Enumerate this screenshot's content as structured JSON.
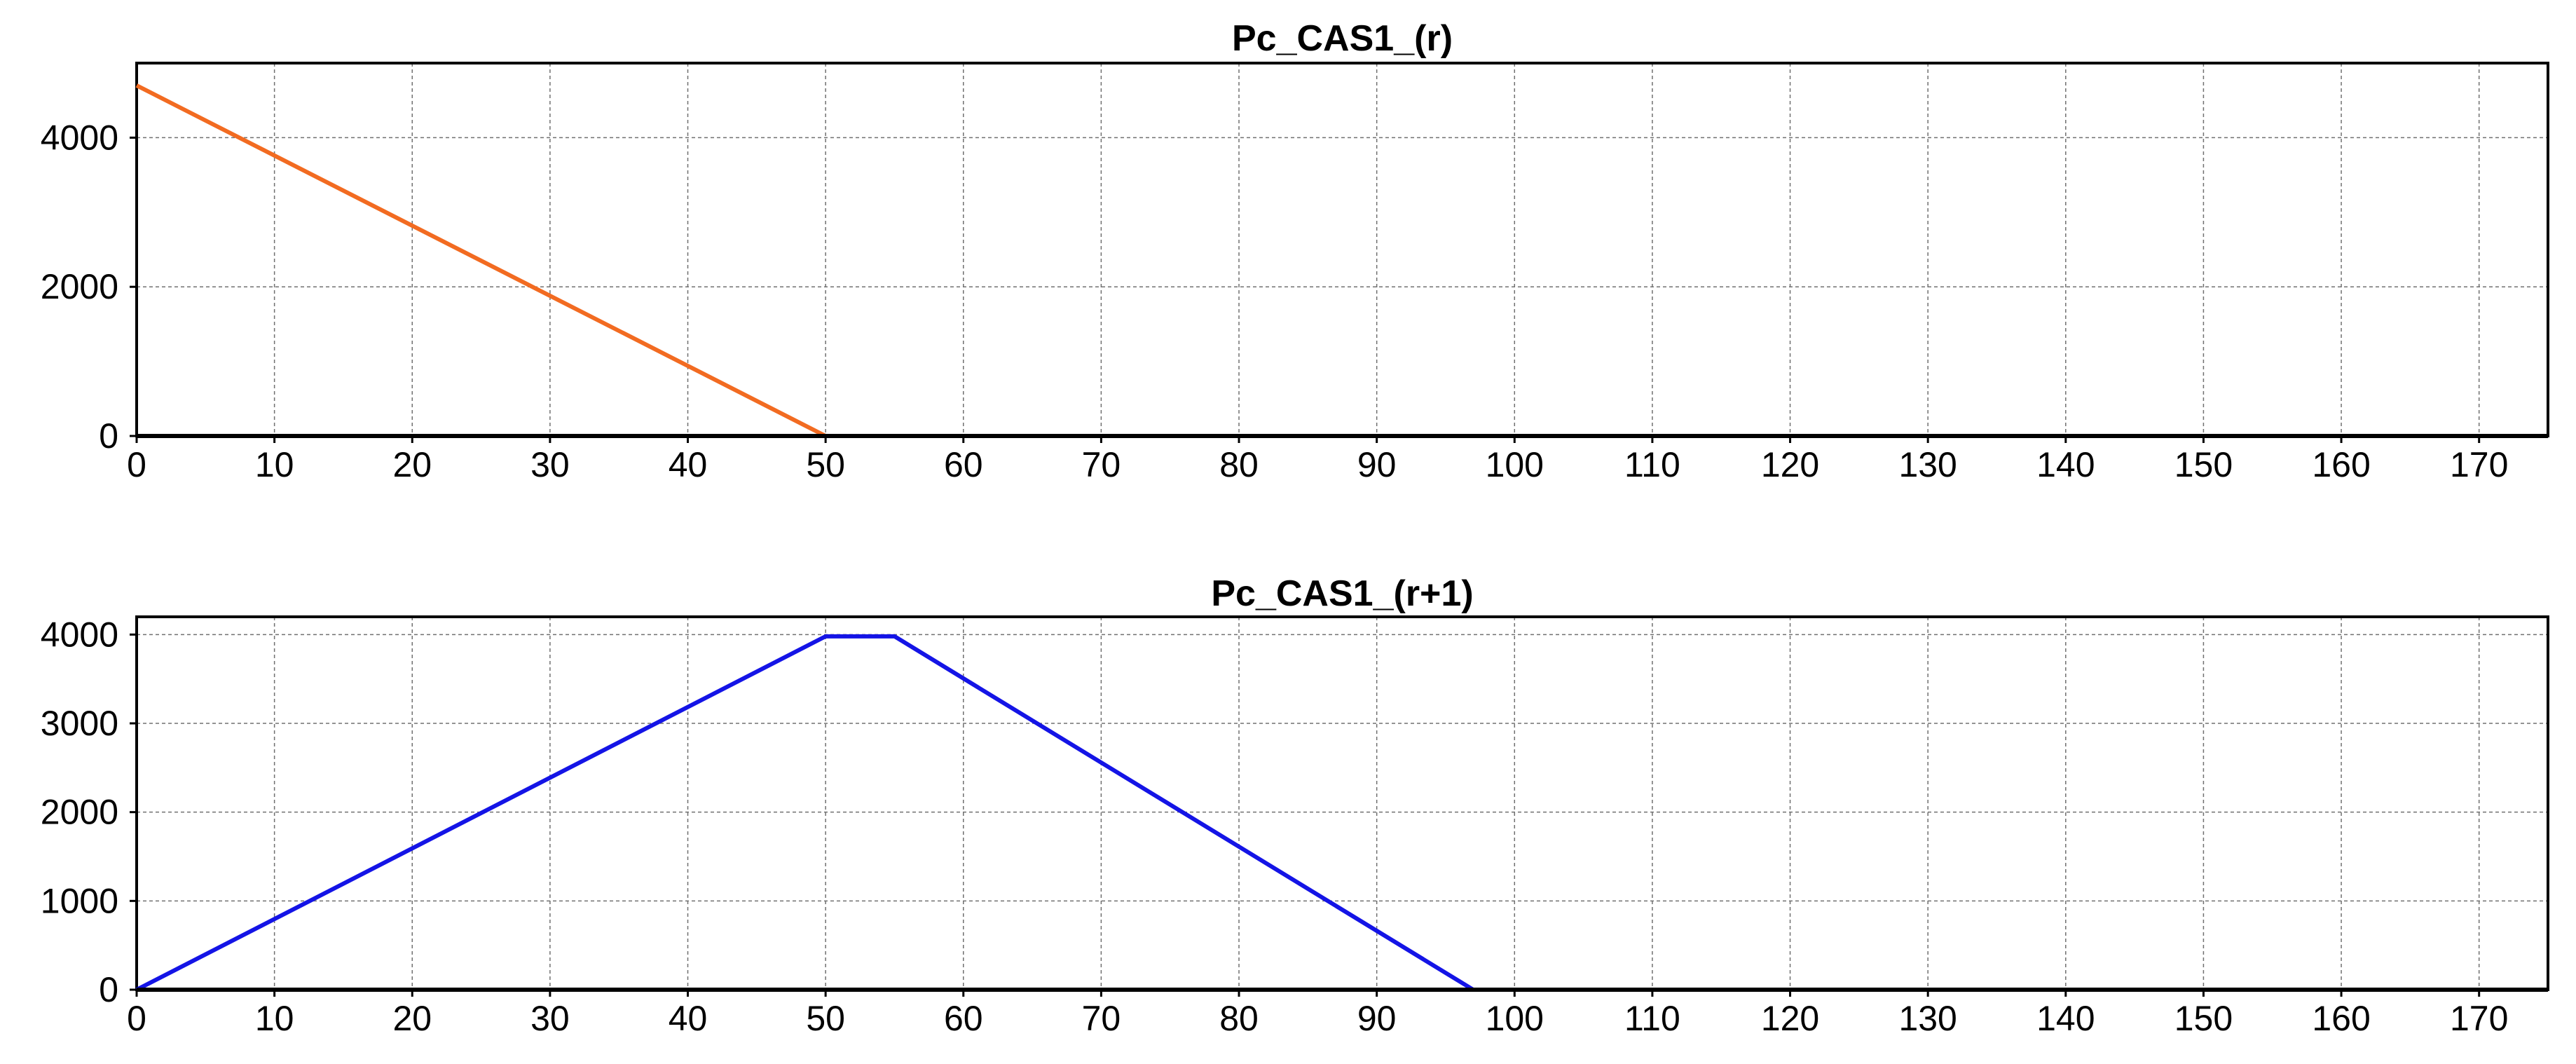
{
  "chart_data": [
    {
      "type": "line",
      "title": "Pc_CAS1_(r)",
      "xlabel": "",
      "ylabel": "",
      "xlim": [
        0,
        175
      ],
      "ylim": [
        0,
        5000
      ],
      "x_ticks": [
        0,
        10,
        20,
        30,
        40,
        50,
        60,
        70,
        80,
        90,
        100,
        110,
        120,
        130,
        140,
        150,
        160,
        170
      ],
      "y_ticks": [
        0,
        2000,
        4000
      ],
      "grid": true,
      "series": [
        {
          "name": "Pc_CAS1_(r)",
          "color": "#f26b21",
          "x": [
            0,
            50,
            175
          ],
          "y": [
            4700,
            0,
            0
          ]
        }
      ]
    },
    {
      "type": "line",
      "title": "Pc_CAS1_(r+1)",
      "xlabel": "",
      "ylabel": "",
      "xlim": [
        0,
        175
      ],
      "ylim": [
        0,
        4200
      ],
      "x_ticks": [
        0,
        10,
        20,
        30,
        40,
        50,
        60,
        70,
        80,
        90,
        100,
        110,
        120,
        130,
        140,
        150,
        160,
        170
      ],
      "y_ticks": [
        0,
        1000,
        2000,
        3000,
        4000
      ],
      "grid": true,
      "series": [
        {
          "name": "Pc_CAS1_(r+1)",
          "color": "#1414e6",
          "x": [
            0,
            50,
            55,
            97,
            175
          ],
          "y": [
            0,
            3980,
            3980,
            0,
            0
          ]
        }
      ]
    }
  ]
}
